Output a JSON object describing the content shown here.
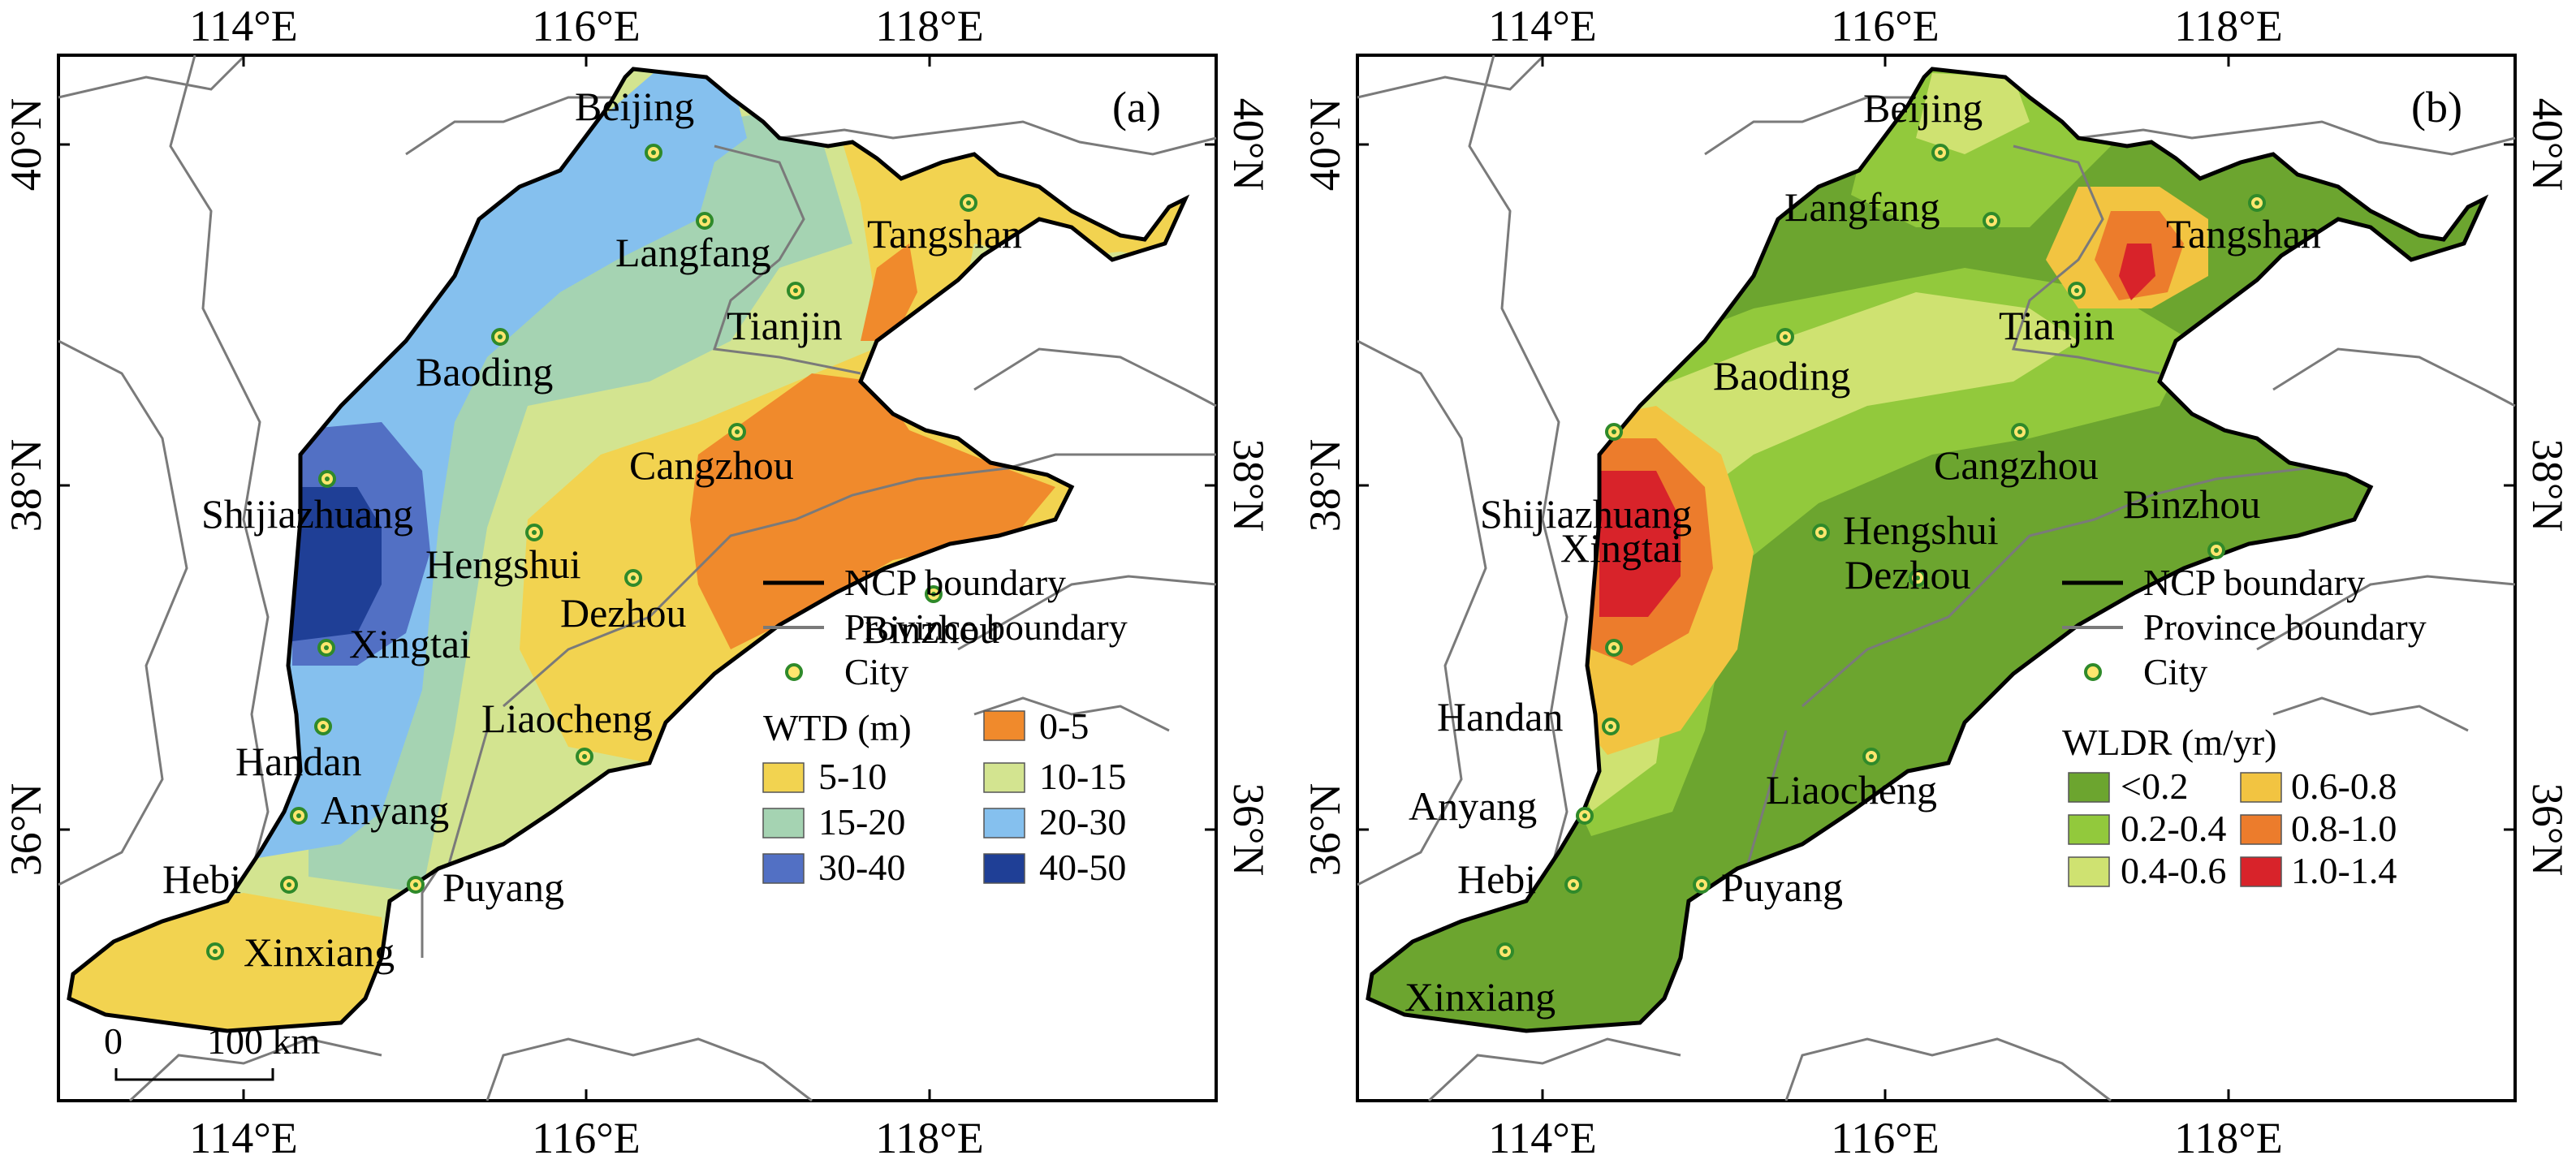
{
  "colors": {
    "wtd": {
      "0-5": "#f08a2c",
      "5-10": "#f2d350",
      "10-15": "#d3e490",
      "15-20": "#a5d3b2",
      "20-30": "#85c0ee",
      "30-40": "#5270c4",
      "40-50": "#1f3f96"
    },
    "wldr": {
      "<0.2": "#6ca52f",
      "0.2-0.4": "#92c93c",
      "0.4-0.6": "#cfe271",
      "0.6-0.8": "#f2c441",
      "0.8-1.0": "#ec7c2c",
      "1.0-1.4": "#d8232a"
    },
    "province_boundary": "#7a7a7a",
    "ncp_boundary": "#000000",
    "city_marker": "#2f8a2a"
  },
  "axes": {
    "lon_ticks": [
      "114°E",
      "116°E",
      "118°E"
    ],
    "lat_ticks": [
      "40°N",
      "38°N",
      "36°N"
    ]
  },
  "panel_a": {
    "label": "(a)",
    "cities": [
      "Beijing",
      "Langfang",
      "Tangshan",
      "Tianjin",
      "Baoding",
      "Cangzhou",
      "Shijiazhuang",
      "Hengshui",
      "Dezhou",
      "Binzhou",
      "Xingtai",
      "Liaocheng",
      "Handan",
      "Anyang",
      "Hebi",
      "Puyang",
      "Xinxiang"
    ],
    "legend": {
      "lines": [
        "NCP boundary",
        "Province boundary",
        "City"
      ],
      "title": "WTD (m)",
      "classes": [
        "5-10",
        "0-5",
        "15-20",
        "10-15",
        "30-40",
        "20-30",
        "40-50"
      ]
    },
    "scale_bar": {
      "zero": "0",
      "label": "100 km"
    }
  },
  "panel_b": {
    "label": "(b)",
    "cities": [
      "Beijing",
      "Langfang",
      "Tangshan",
      "Tianjin",
      "Baoding",
      "Cangzhou",
      "Shijiazhuang",
      "Hengshui",
      "Binzhou",
      "Xingtai",
      "Dezhou",
      "Handan",
      "Liaocheng",
      "Anyang",
      "Hebi",
      "Puyang",
      "Xinxiang"
    ],
    "legend": {
      "lines": [
        "NCP boundary",
        "Province boundary",
        "City"
      ],
      "title": "WLDR (m/yr)",
      "classes": [
        "<0.2",
        "0.6-0.8",
        "0.2-0.4",
        "0.8-1.0",
        "0.4-0.6",
        "1.0-1.4"
      ]
    }
  }
}
